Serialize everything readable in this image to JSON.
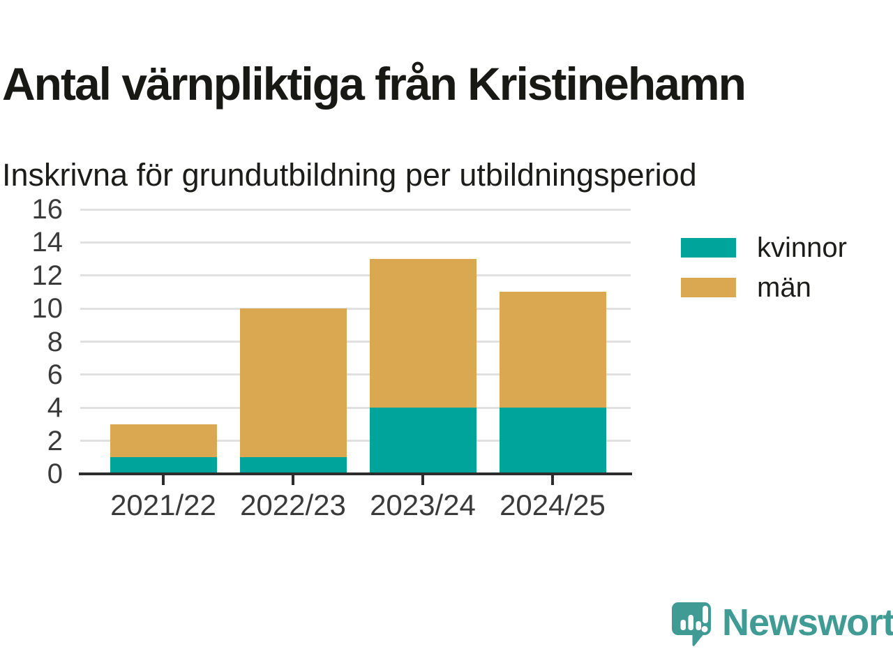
{
  "header": {
    "title": "Antal värnpliktiga från Kristinehamn",
    "subtitle": "Inskrivna för grundutbildning per utbildningsperiod"
  },
  "chart_data": {
    "type": "bar",
    "stacked": true,
    "title": "Antal värnpliktiga från Kristinehamn",
    "subtitle": "Inskrivna för grundutbildning per utbildningsperiod",
    "categories": [
      "2021/22",
      "2022/23",
      "2023/24",
      "2024/25"
    ],
    "series": [
      {
        "name": "kvinnor",
        "color": "#00a49b",
        "values": [
          1,
          1,
          4,
          4
        ]
      },
      {
        "name": "män",
        "color": "#d9a851",
        "values": [
          2,
          9,
          9,
          7
        ]
      }
    ],
    "totals": [
      3,
      10,
      13,
      11
    ],
    "xlabel": "",
    "ylabel": "",
    "ylim": [
      0,
      16
    ],
    "yticks": [
      0,
      2,
      4,
      6,
      8,
      10,
      12,
      14,
      16
    ],
    "grid": true,
    "legend_position": "right"
  },
  "colors": {
    "grid": "#e0e0e0",
    "axis_line": "#2d2d2d",
    "tick_label": "#3a3a3a",
    "title_text": "#181815"
  },
  "branding": {
    "name": "Newsworthy",
    "color": "#3f9b94",
    "icon": "newsworthy-speech-bubble-chart-icon"
  }
}
